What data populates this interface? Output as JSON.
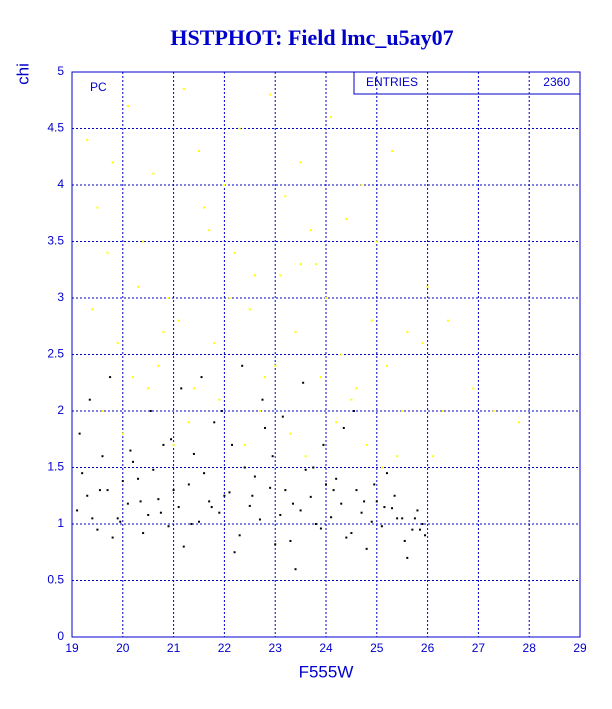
{
  "chart_data": {
    "type": "scatter",
    "title": "HSTPHOT: Field lmc_u5ay07",
    "x_label": "F555W",
    "y_label": "chi",
    "annotation": "PC",
    "stats": {
      "label": "ENTRIES",
      "value": 2360
    },
    "xlim": [
      19,
      29
    ],
    "xticks": [
      19,
      20,
      21,
      22,
      23,
      24,
      25,
      26,
      27,
      28,
      29
    ],
    "ylim": [
      0,
      5
    ],
    "yticks": [
      0,
      0.5,
      1,
      1.5,
      2,
      2.5,
      3,
      3.5,
      4,
      4.5,
      5
    ],
    "grid": true,
    "series": [
      {
        "color": "#000000",
        "x": [
          19.1,
          19.3,
          19.5,
          19.7,
          19.9,
          20.1,
          20.3,
          20.5,
          20.7,
          20.9,
          21.1,
          21.3,
          21.5,
          21.7,
          21.9,
          22.1,
          22.3,
          22.5,
          22.7,
          22.9,
          23.1,
          23.3,
          23.5,
          23.7,
          23.9,
          24.1,
          24.3,
          24.5,
          24.7,
          24.9,
          25.1,
          25.3,
          25.5,
          25.7,
          25.9,
          19.2,
          19.4,
          19.6,
          19.8,
          20.0,
          20.2,
          20.4,
          20.6,
          20.8,
          21.0,
          21.2,
          21.4,
          21.6,
          21.8,
          22.0,
          22.2,
          22.4,
          22.6,
          22.8,
          23.0,
          23.2,
          23.4,
          23.6,
          23.8,
          24.0,
          24.2,
          24.4,
          24.6,
          24.8,
          25.0,
          25.2,
          25.4,
          25.6,
          25.8,
          25.95,
          19.15,
          19.35,
          19.55,
          19.75,
          19.95,
          20.15,
          20.35,
          20.55,
          20.75,
          20.95,
          21.15,
          21.35,
          21.55,
          21.75,
          21.95,
          22.15,
          22.35,
          22.55,
          22.75,
          22.95,
          23.15,
          23.35,
          23.55,
          23.75,
          23.95,
          24.15,
          24.35,
          24.55,
          24.75,
          24.95,
          25.15,
          25.35,
          25.55,
          25.75,
          25.85
        ],
        "values": [
          1.12,
          1.25,
          0.95,
          1.3,
          1.05,
          1.18,
          1.4,
          1.08,
          1.22,
          0.98,
          1.15,
          1.35,
          1.02,
          1.2,
          1.1,
          1.28,
          0.9,
          1.16,
          1.04,
          1.32,
          1.08,
          0.85,
          1.12,
          1.24,
          0.96,
          1.06,
          1.18,
          0.92,
          1.1,
          1.02,
          0.98,
          1.14,
          1.05,
          0.95,
          1.0,
          1.45,
          1.05,
          1.6,
          0.88,
          1.38,
          1.55,
          0.92,
          1.48,
          1.7,
          1.3,
          0.8,
          1.62,
          1.45,
          1.9,
          1.25,
          0.75,
          1.5,
          1.42,
          1.85,
          0.82,
          1.3,
          0.6,
          1.48,
          1.0,
          1.35,
          1.4,
          0.88,
          1.3,
          0.78,
          1.2,
          1.45,
          1.05,
          0.7,
          1.12,
          0.9,
          1.8,
          2.1,
          1.3,
          2.3,
          1.02,
          1.65,
          1.2,
          2.0,
          1.1,
          1.75,
          2.2,
          1.0,
          2.3,
          1.15,
          2.0,
          1.7,
          2.4,
          1.25,
          2.1,
          1.6,
          1.95,
          1.18,
          2.25,
          1.5,
          1.7,
          1.3,
          1.85,
          2.0,
          1.2,
          1.35,
          1.15,
          1.25,
          0.85,
          1.05,
          0.95
        ]
      },
      {
        "color": "#ffff00",
        "x": [
          19.3,
          19.5,
          19.8,
          20.1,
          20.4,
          20.6,
          20.9,
          21.2,
          21.5,
          21.7,
          22.0,
          22.3,
          22.6,
          22.9,
          23.2,
          23.5,
          23.8,
          24.1,
          24.4,
          24.7,
          25.0,
          25.3,
          25.6,
          26.0,
          26.4,
          26.9,
          27.3,
          27.8,
          19.4,
          19.9,
          20.3,
          20.7,
          21.1,
          21.4,
          21.8,
          22.2,
          22.5,
          22.8,
          23.1,
          23.4,
          23.7,
          24.0,
          24.3,
          24.6,
          24.9,
          25.2,
          25.5,
          25.9,
          26.3,
          19.6,
          20.0,
          20.5,
          21.0,
          21.3,
          21.9,
          22.4,
          22.7,
          23.3,
          23.6,
          23.9,
          24.2,
          24.8,
          25.4,
          19.7,
          20.2,
          20.8,
          21.6,
          22.1,
          23.0,
          23.5,
          24.5,
          25.1,
          26.1
        ],
        "values": [
          4.4,
          3.8,
          4.2,
          4.7,
          3.5,
          4.1,
          3.0,
          4.85,
          4.3,
          3.6,
          4.0,
          4.5,
          3.2,
          4.8,
          3.9,
          4.2,
          3.3,
          4.6,
          3.7,
          4.0,
          3.5,
          4.3,
          2.7,
          3.1,
          2.8,
          2.2,
          2.0,
          1.9,
          2.9,
          2.6,
          3.1,
          2.4,
          2.8,
          2.2,
          2.6,
          3.4,
          2.9,
          2.3,
          3.2,
          2.7,
          3.6,
          3.0,
          2.5,
          2.2,
          2.8,
          2.4,
          2.0,
          2.6,
          2.0,
          2.0,
          1.8,
          2.2,
          1.7,
          1.9,
          2.1,
          1.7,
          2.0,
          1.8,
          1.6,
          2.3,
          1.9,
          1.7,
          1.6,
          3.4,
          2.3,
          2.7,
          3.8,
          3.0,
          2.4,
          3.3,
          2.1,
          1.5,
          1.6
        ]
      }
    ]
  }
}
